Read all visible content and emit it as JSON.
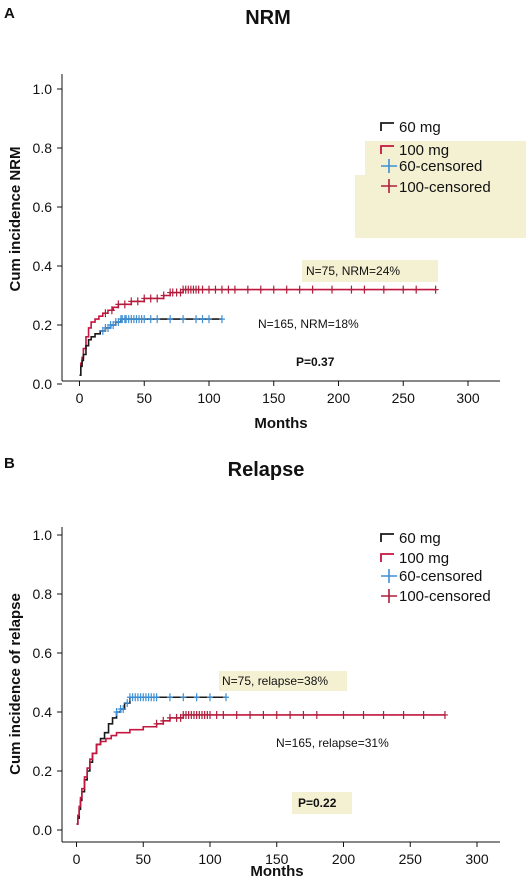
{
  "panels": [
    {
      "letter": "A",
      "title": "NRM",
      "ylabel": "Cum incidence NRM",
      "xlabel": "Months",
      "annotation_a": "N=75, NRM=24%",
      "annotation_b": "N=165, NRM=18%",
      "pvalue": "P=0.37"
    },
    {
      "letter": "B",
      "title": "Relapse",
      "ylabel": "Cum incidence of relapse",
      "xlabel": "Months",
      "annotation_a": "N=75, relapse=38%",
      "annotation_b": "N=165, relapse=31%",
      "pvalue": "P=0.22"
    }
  ],
  "legend": [
    "60 mg",
    "100 mg",
    "60-censored",
    "100-censored"
  ],
  "colors": {
    "s60": "#1a1a1a",
    "s100": "#c4163f",
    "c60": "#3d8fd6",
    "c100": "#b01e3c",
    "highlight": "#f4f0d2"
  },
  "chart_data": [
    {
      "type": "line",
      "title": "NRM",
      "xlabel": "Months",
      "ylabel": "Cum incidence NRM",
      "xlim": [
        0,
        300
      ],
      "ylim": [
        0,
        1.0
      ],
      "xticks": [
        0,
        50,
        100,
        150,
        200,
        250,
        300
      ],
      "yticks": [
        0.0,
        0.2,
        0.4,
        0.6,
        0.8,
        1.0
      ],
      "grid": false,
      "legend_position": "top-right",
      "series": [
        {
          "name": "60 mg",
          "x": [
            0,
            1,
            2,
            3,
            5,
            7,
            9,
            12,
            16,
            20,
            24,
            28,
            32,
            36,
            110
          ],
          "y": [
            0.03,
            0.06,
            0.08,
            0.1,
            0.13,
            0.15,
            0.16,
            0.17,
            0.18,
            0.19,
            0.2,
            0.21,
            0.22,
            0.22,
            0.22
          ],
          "censored_x": [
            18,
            20,
            22,
            24,
            26,
            28,
            30,
            32,
            33,
            35,
            36,
            38,
            40,
            42,
            44,
            46,
            48,
            50,
            55,
            60,
            70,
            80,
            90,
            95,
            100,
            110
          ]
        },
        {
          "name": "100 mg",
          "x": [
            0,
            1,
            2,
            3,
            5,
            7,
            9,
            12,
            15,
            18,
            22,
            26,
            30,
            35,
            40,
            45,
            50,
            55,
            60,
            65,
            70,
            75,
            80,
            275
          ],
          "y": [
            0.03,
            0.07,
            0.09,
            0.12,
            0.16,
            0.19,
            0.21,
            0.22,
            0.23,
            0.24,
            0.25,
            0.26,
            0.27,
            0.27,
            0.28,
            0.28,
            0.29,
            0.29,
            0.29,
            0.3,
            0.31,
            0.31,
            0.32,
            0.32
          ],
          "censored_x": [
            20,
            25,
            30,
            35,
            40,
            45,
            50,
            55,
            60,
            65,
            70,
            72,
            75,
            78,
            80,
            82,
            84,
            86,
            88,
            90,
            92,
            95,
            100,
            105,
            110,
            115,
            120,
            130,
            140,
            150,
            160,
            170,
            180,
            195,
            210,
            220,
            235,
            250,
            260,
            275
          ]
        }
      ]
    },
    {
      "type": "line",
      "title": "Relapse",
      "xlabel": "Months",
      "ylabel": "Cum incidence of relapse",
      "xlim": [
        0,
        300
      ],
      "ylim": [
        0,
        1.0
      ],
      "xticks": [
        0,
        50,
        100,
        150,
        200,
        250,
        300
      ],
      "yticks": [
        0.0,
        0.2,
        0.4,
        0.6,
        0.8,
        1.0
      ],
      "grid": false,
      "legend_position": "top-right",
      "series": [
        {
          "name": "60 mg",
          "x": [
            0,
            1,
            2,
            3,
            4,
            6,
            8,
            10,
            12,
            15,
            18,
            21,
            24,
            27,
            30,
            33,
            36,
            40,
            43,
            112
          ],
          "y": [
            0.02,
            0.04,
            0.07,
            0.1,
            0.13,
            0.17,
            0.2,
            0.23,
            0.26,
            0.29,
            0.31,
            0.33,
            0.36,
            0.38,
            0.4,
            0.41,
            0.43,
            0.45,
            0.45,
            0.45
          ],
          "censored_x": [
            30,
            33,
            35,
            38,
            40,
            42,
            44,
            46,
            48,
            50,
            52,
            54,
            56,
            58,
            60,
            70,
            80,
            90,
            100,
            112
          ]
        },
        {
          "name": "100 mg",
          "x": [
            0,
            1,
            2,
            3,
            4,
            6,
            8,
            10,
            12,
            15,
            18,
            22,
            26,
            30,
            35,
            40,
            45,
            50,
            55,
            60,
            65,
            70,
            75,
            80,
            276
          ],
          "y": [
            0.02,
            0.05,
            0.08,
            0.11,
            0.14,
            0.18,
            0.21,
            0.24,
            0.26,
            0.29,
            0.3,
            0.31,
            0.32,
            0.33,
            0.33,
            0.34,
            0.34,
            0.35,
            0.35,
            0.36,
            0.37,
            0.38,
            0.38,
            0.39,
            0.39
          ],
          "censored_x": [
            60,
            65,
            70,
            75,
            78,
            80,
            82,
            84,
            86,
            88,
            90,
            92,
            94,
            96,
            98,
            100,
            105,
            110,
            120,
            130,
            140,
            150,
            160,
            170,
            180,
            200,
            215,
            230,
            245,
            260,
            276
          ]
        }
      ]
    }
  ]
}
